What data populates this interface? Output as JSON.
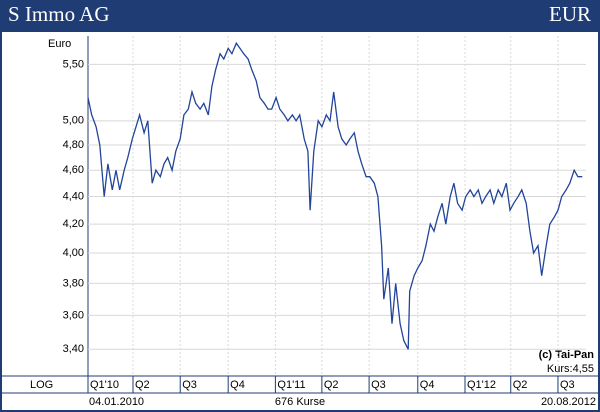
{
  "chart_data": {
    "type": "line",
    "title": "S Immo AG",
    "currency": "EUR",
    "y_label": "Euro",
    "log_y": true,
    "grid": true,
    "scale_label": "LOG",
    "start_date": "04.01.2010",
    "end_date": "20.08.2012",
    "count_label": "676 Kurse",
    "credit": "(c) Tai-Pan",
    "last_price_label": "Kurs:4,55",
    "ylim": [
      3.25,
      5.77
    ],
    "yticks": [
      {
        "value": 3.4,
        "label": "3,40"
      },
      {
        "value": 3.6,
        "label": "3,60"
      },
      {
        "value": 3.8,
        "label": "3,80"
      },
      {
        "value": 4.0,
        "label": "4,00"
      },
      {
        "value": 4.2,
        "label": "4,20"
      },
      {
        "value": 4.4,
        "label": "4,40"
      },
      {
        "value": 4.6,
        "label": "4,60"
      },
      {
        "value": 4.8,
        "label": "4,80"
      },
      {
        "value": 5.0,
        "label": "5,00"
      },
      {
        "value": 5.5,
        "label": "5,50"
      }
    ],
    "xlim": [
      0,
      675
    ],
    "xticks": [
      {
        "value": 0,
        "label": "Q1'10"
      },
      {
        "value": 61,
        "label": "Q2"
      },
      {
        "value": 125,
        "label": "Q3"
      },
      {
        "value": 190,
        "label": "Q4"
      },
      {
        "value": 254,
        "label": "Q1'11"
      },
      {
        "value": 317,
        "label": "Q2"
      },
      {
        "value": 381,
        "label": "Q3"
      },
      {
        "value": 447,
        "label": "Q4"
      },
      {
        "value": 511,
        "label": "Q1'12"
      },
      {
        "value": 573,
        "label": "Q2"
      },
      {
        "value": 637,
        "label": "Q3"
      }
    ],
    "series": [
      {
        "name": "S Immo AG",
        "color": "#22449a",
        "x": [
          0,
          5,
          11,
          16,
          22,
          27,
          33,
          38,
          43,
          49,
          54,
          60,
          65,
          70,
          76,
          81,
          87,
          92,
          98,
          103,
          108,
          114,
          119,
          125,
          130,
          136,
          141,
          146,
          152,
          157,
          163,
          168,
          173,
          179,
          184,
          190,
          195,
          201,
          206,
          211,
          217,
          222,
          228,
          233,
          239,
          244,
          249,
          255,
          260,
          266,
          271,
          277,
          282,
          287,
          293,
          298,
          301,
          306,
          312,
          317,
          323,
          328,
          333,
          339,
          344,
          350,
          355,
          361,
          366,
          371,
          377,
          382,
          388,
          393,
          398,
          401,
          407,
          412,
          417,
          423,
          428,
          434,
          436,
          442,
          447,
          453,
          458,
          464,
          469,
          474,
          480,
          485,
          491,
          496,
          501,
          507,
          512,
          518,
          523,
          529,
          534,
          539,
          545,
          550,
          556,
          561,
          567,
          572,
          577,
          583,
          588,
          594,
          599,
          604,
          610,
          615,
          621,
          626,
          632,
          637,
          642,
          648,
          653,
          659,
          664,
          670
        ],
        "values": [
          5.2,
          5.05,
          4.95,
          4.8,
          4.4,
          4.65,
          4.45,
          4.6,
          4.45,
          4.6,
          4.7,
          4.85,
          4.95,
          5.05,
          4.9,
          5.0,
          4.5,
          4.6,
          4.55,
          4.65,
          4.7,
          4.6,
          4.75,
          4.85,
          5.05,
          5.1,
          5.25,
          5.15,
          5.1,
          5.15,
          5.05,
          5.3,
          5.45,
          5.6,
          5.55,
          5.65,
          5.6,
          5.7,
          5.65,
          5.6,
          5.55,
          5.45,
          5.35,
          5.2,
          5.15,
          5.1,
          5.1,
          5.2,
          5.1,
          5.05,
          5.0,
          5.05,
          5.0,
          5.05,
          4.85,
          4.75,
          4.3,
          4.75,
          5.0,
          4.95,
          5.05,
          5.0,
          5.25,
          4.95,
          4.85,
          4.8,
          4.85,
          4.9,
          4.75,
          4.65,
          4.55,
          4.55,
          4.5,
          4.4,
          4.05,
          3.7,
          3.9,
          3.55,
          3.8,
          3.55,
          3.45,
          3.4,
          3.75,
          3.85,
          3.9,
          3.95,
          4.05,
          4.2,
          4.15,
          4.25,
          4.35,
          4.2,
          4.4,
          4.5,
          4.35,
          4.3,
          4.4,
          4.45,
          4.4,
          4.45,
          4.35,
          4.4,
          4.45,
          4.35,
          4.45,
          4.4,
          4.5,
          4.3,
          4.35,
          4.4,
          4.45,
          4.35,
          4.15,
          4.0,
          4.05,
          3.85,
          4.05,
          4.2,
          4.25,
          4.3,
          4.4,
          4.45,
          4.5,
          4.6,
          4.55,
          4.55
        ]
      }
    ]
  }
}
